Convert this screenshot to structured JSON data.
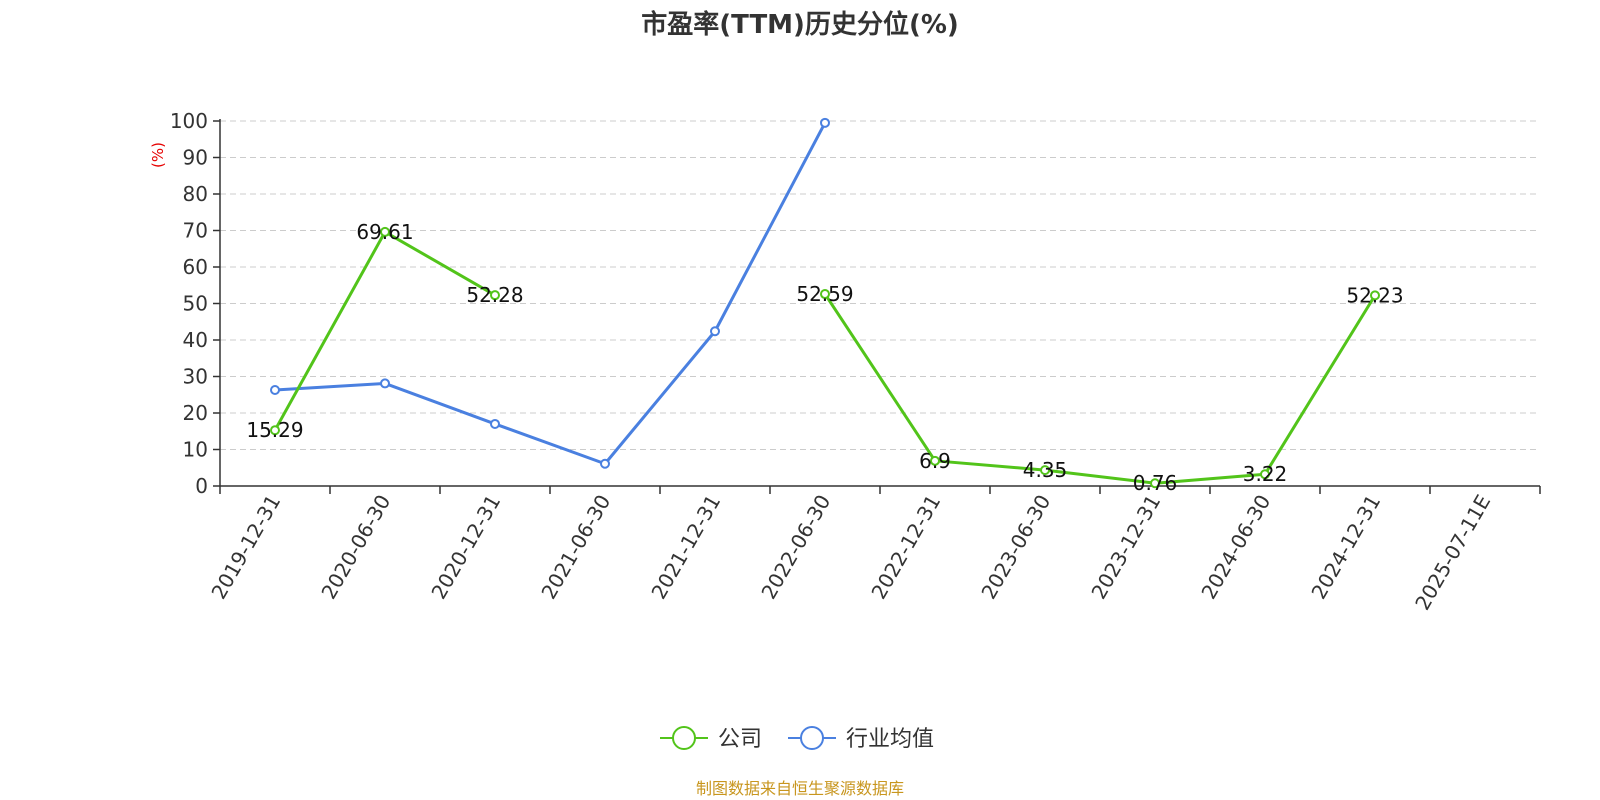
{
  "chart_data": {
    "type": "line",
    "title": "市盈率(TTM)历史分位(%)",
    "ylabel": "(%)",
    "ylim": [
      0,
      100
    ],
    "yticks": [
      0,
      10,
      20,
      30,
      40,
      50,
      60,
      70,
      80,
      90,
      100
    ],
    "grid": true,
    "legend_position": "bottom-center",
    "categories": [
      "2019-12-31",
      "2020-06-30",
      "2020-12-31",
      "2021-06-30",
      "2021-12-31",
      "2022-06-30",
      "2022-12-31",
      "2023-06-30",
      "2023-12-31",
      "2024-06-30",
      "2024-12-31",
      "2025-07-11E"
    ],
    "series": [
      {
        "name": "公司",
        "color": "#52c41a",
        "values": [
          15.29,
          69.61,
          52.28,
          null,
          null,
          52.59,
          6.9,
          4.35,
          0.76,
          3.22,
          52.23,
          null
        ],
        "labels": [
          "15.29",
          "69.61",
          "52.28",
          "",
          "",
          "52.59",
          "6.9",
          "4.35",
          "0.76",
          "3.22",
          "52.23",
          ""
        ],
        "show_labels": true
      },
      {
        "name": "行业均值",
        "color": "#4a80e0",
        "values": [
          26.3,
          28.1,
          17.0,
          6.1,
          42.4,
          99.5,
          null,
          null,
          null,
          null,
          null,
          null
        ],
        "show_labels": false
      }
    ]
  },
  "source_text": "制图数据来自恒生聚源数据库",
  "colors": {
    "ylabel": "#e60000",
    "source": "#c8961e",
    "axis": "#333333",
    "grid": "#cccccc"
  }
}
